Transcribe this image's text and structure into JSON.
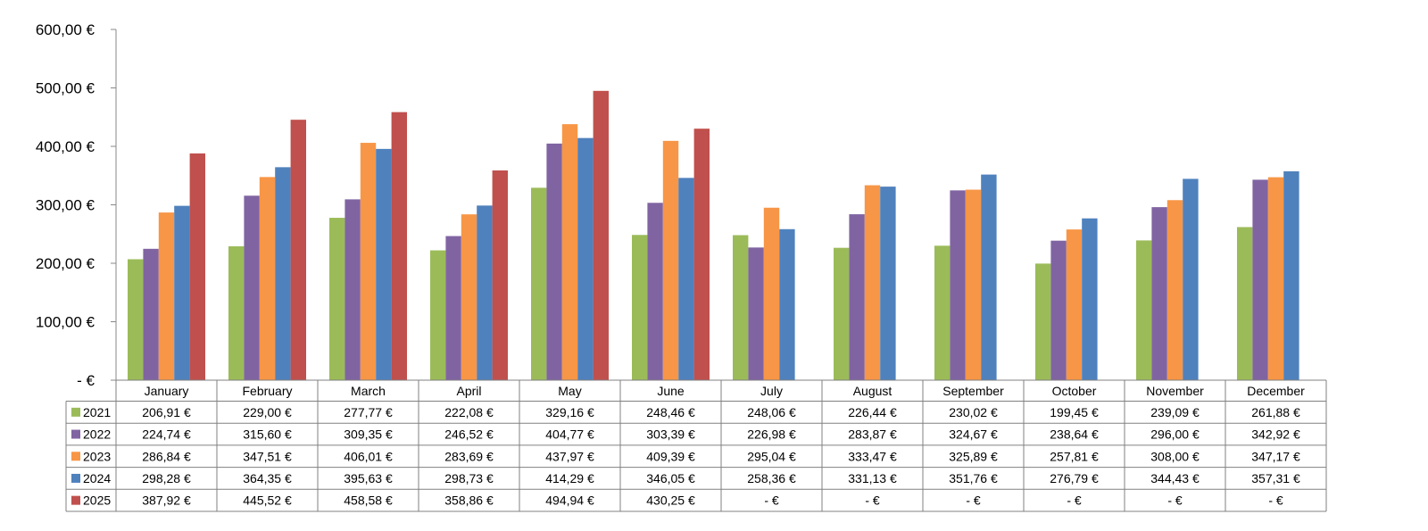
{
  "chart_data": {
    "type": "bar",
    "title": "",
    "xlabel": "",
    "ylabel": "",
    "categories": [
      "January",
      "February",
      "March",
      "April",
      "May",
      "June",
      "July",
      "August",
      "September",
      "October",
      "November",
      "December"
    ],
    "ylim": [
      0,
      600
    ],
    "y_ticks": [
      0,
      100,
      200,
      300,
      400,
      500,
      600
    ],
    "y_tick_labels": [
      "-  €",
      "100,00 €",
      "200,00 €",
      "300,00 €",
      "400,00 €",
      "500,00 €",
      "600,00 €"
    ],
    "grid": false,
    "legend": "data-table",
    "series": [
      {
        "name": "2021",
        "color": "#9BBB59",
        "values": [
          206.91,
          229.0,
          277.77,
          222.08,
          329.16,
          248.46,
          248.06,
          226.44,
          230.02,
          199.45,
          239.09,
          261.88
        ],
        "labels": [
          "206,91 €",
          "229,00 €",
          "277,77 €",
          "222,08 €",
          "329,16 €",
          "248,46 €",
          "248,06 €",
          "226,44 €",
          "230,02 €",
          "199,45 €",
          "239,09 €",
          "261,88 €"
        ]
      },
      {
        "name": "2022",
        "color": "#8064A2",
        "values": [
          224.74,
          315.6,
          309.35,
          246.52,
          404.77,
          303.39,
          226.98,
          283.87,
          324.67,
          238.64,
          296.0,
          342.92
        ],
        "labels": [
          "224,74 €",
          "315,60 €",
          "309,35 €",
          "246,52 €",
          "404,77 €",
          "303,39 €",
          "226,98 €",
          "283,87 €",
          "324,67 €",
          "238,64 €",
          "296,00 €",
          "342,92 €"
        ]
      },
      {
        "name": "2023",
        "color": "#F79646",
        "values": [
          286.84,
          347.51,
          406.01,
          283.69,
          437.97,
          409.39,
          295.04,
          333.47,
          325.89,
          257.81,
          308.0,
          347.17
        ],
        "labels": [
          "286,84 €",
          "347,51 €",
          "406,01 €",
          "283,69 €",
          "437,97 €",
          "409,39 €",
          "295,04 €",
          "333,47 €",
          "325,89 €",
          "257,81 €",
          "308,00 €",
          "347,17 €"
        ]
      },
      {
        "name": "2024",
        "color": "#4F81BD",
        "values": [
          298.28,
          364.35,
          395.63,
          298.73,
          414.29,
          346.05,
          258.36,
          331.13,
          351.76,
          276.79,
          344.43,
          357.31
        ],
        "labels": [
          "298,28 €",
          "364,35 €",
          "395,63 €",
          "298,73 €",
          "414,29 €",
          "346,05 €",
          "258,36 €",
          "331,13 €",
          "351,76 €",
          "276,79 €",
          "344,43 €",
          "357,31 €"
        ]
      },
      {
        "name": "2025",
        "color": "#C0504D",
        "values": [
          387.92,
          445.52,
          458.58,
          358.86,
          494.94,
          430.25,
          0,
          0,
          0,
          0,
          0,
          0
        ],
        "labels": [
          "387,92 €",
          "445,52 €",
          "458,58 €",
          "358,86 €",
          "494,94 €",
          "430,25 €",
          "-  €",
          "-  €",
          "-  €",
          "-  €",
          "-  €",
          "-  €"
        ]
      }
    ]
  }
}
